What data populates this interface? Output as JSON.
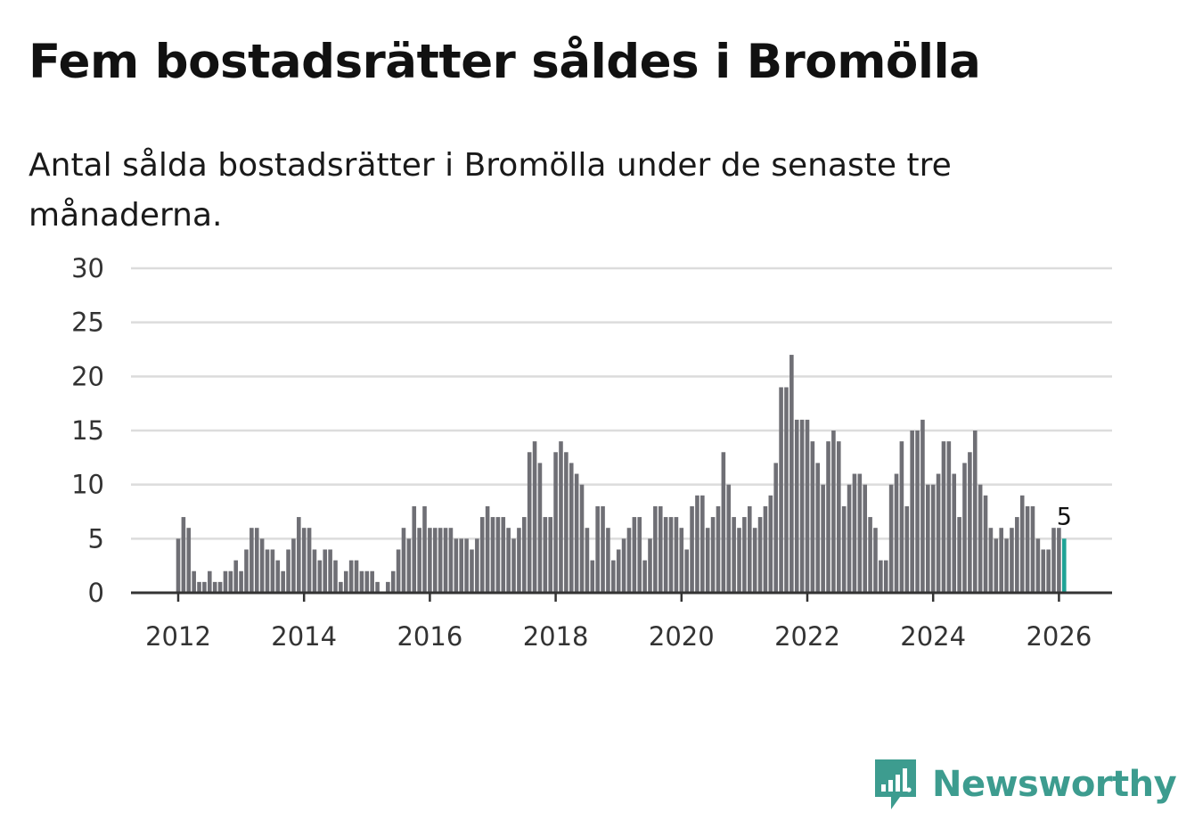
{
  "header": {
    "title": "Fem bostadsrätter såldes i Bromölla",
    "subtitle": "Antal sålda bostadsrätter i Bromölla under de senaste tre månaderna."
  },
  "brand": {
    "name": "Newsworthy",
    "color": "#3d9c8f",
    "icon": "newsworthy-logo-icon"
  },
  "colors": {
    "bar": "#6f6f75",
    "highlight": "#1fa396",
    "grid": "#dcdcdc",
    "axis": "#333333"
  },
  "chart_data": {
    "type": "bar",
    "title": "Fem bostadsrätter såldes i Bromölla",
    "subtitle": "Antal sålda bostadsrätter i Bromölla under de senaste tre månaderna.",
    "xlabel": "",
    "ylabel": "",
    "ylim": [
      0,
      30
    ],
    "yticks": [
      "0",
      "5",
      "10",
      "15",
      "20",
      "25",
      "30"
    ],
    "xticks": [
      "2012",
      "2014",
      "2016",
      "2018",
      "2020",
      "2022",
      "2024",
      "2026"
    ],
    "start": "2012-01",
    "end": "2026-02",
    "grid": true,
    "annotation": {
      "label": "5",
      "month": "2026-02"
    },
    "series": [
      {
        "name": "Antal sålda bostadsrätter",
        "values": [
          5,
          7,
          6,
          2,
          1,
          1,
          2,
          1,
          1,
          2,
          2,
          3,
          2,
          4,
          6,
          6,
          5,
          4,
          4,
          3,
          2,
          4,
          5,
          7,
          6,
          6,
          4,
          3,
          4,
          4,
          3,
          1,
          2,
          3,
          3,
          2,
          2,
          2,
          1,
          0,
          1,
          2,
          4,
          6,
          5,
          8,
          6,
          8,
          6,
          6,
          6,
          6,
          6,
          5,
          5,
          5,
          4,
          5,
          7,
          8,
          7,
          7,
          7,
          6,
          5,
          6,
          7,
          13,
          14,
          12,
          7,
          7,
          13,
          14,
          13,
          12,
          11,
          10,
          6,
          3,
          8,
          8,
          6,
          3,
          4,
          5,
          6,
          7,
          7,
          3,
          5,
          8,
          8,
          7,
          7,
          7,
          6,
          4,
          8,
          9,
          9,
          6,
          7,
          8,
          13,
          10,
          7,
          6,
          7,
          8,
          6,
          7,
          8,
          9,
          12,
          19,
          19,
          22,
          16,
          16,
          16,
          14,
          12,
          10,
          14,
          15,
          14,
          8,
          10,
          11,
          11,
          10,
          7,
          6,
          3,
          3,
          10,
          11,
          14,
          8,
          15,
          15,
          16,
          10,
          10,
          11,
          14,
          14,
          11,
          7,
          12,
          13,
          15,
          10,
          9,
          6,
          5,
          6,
          5,
          6,
          7,
          9,
          8,
          8,
          5,
          4,
          4,
          6,
          6,
          5
        ]
      }
    ]
  }
}
